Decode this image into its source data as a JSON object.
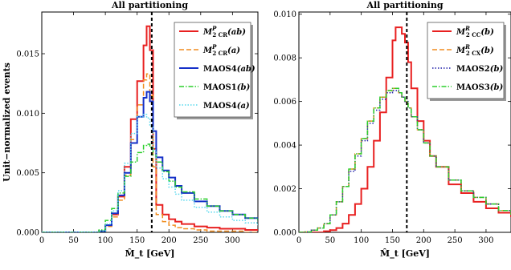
{
  "chart_data": [
    {
      "type": "line",
      "title": "All partitioning",
      "xlabel": "M̂_t [GeV]",
      "ylabel": "Unit−normalized events",
      "xlim": [
        0,
        340
      ],
      "ylim": [
        0,
        0.0185
      ],
      "xticks": [
        "0",
        "50",
        "100",
        "150",
        "200",
        "250",
        "300"
      ],
      "yticks": [
        "0.000",
        "0.005",
        "0.010",
        "0.015"
      ],
      "vline_x": 173,
      "legend_position": "top-right",
      "x": [
        90,
        100,
        110,
        120,
        130,
        140,
        150,
        160,
        165,
        170,
        175,
        180,
        190,
        200,
        210,
        220,
        240,
        260,
        280,
        300,
        320,
        340
      ],
      "series": [
        {
          "name": "M₂CR^P(ab)",
          "label_main": "M",
          "label_sub": "2 CR",
          "label_sup": "P",
          "label_arg": "(ab)",
          "color": "#e82020",
          "dash": "solid",
          "width": 2,
          "values": [
            0.0001,
            0.0006,
            0.0015,
            0.003,
            0.0055,
            0.0095,
            0.0127,
            0.0157,
            0.0173,
            0.0153,
            0.007,
            0.0023,
            0.0015,
            0.0011,
            0.0009,
            0.0007,
            0.0005,
            0.0004,
            0.0003,
            0.0003,
            0.0002,
            0.0002
          ]
        },
        {
          "name": "M₂CR^P(a)",
          "label_main": "M",
          "label_sub": "2 CR",
          "label_sup": "P",
          "label_arg": "(a)",
          "color": "#f08c1e",
          "dash": "6,3",
          "width": 1.5,
          "values": [
            0.0001,
            0.0005,
            0.0013,
            0.0027,
            0.0048,
            0.0078,
            0.0107,
            0.0128,
            0.0133,
            0.0115,
            0.0055,
            0.0015,
            0.0009,
            0.0006,
            0.0004,
            0.0003,
            0.0002,
            0.0001,
            0.0001,
            0.0001,
            0.0,
            0.0
          ]
        },
        {
          "name": "MAOS4(ab)",
          "label_main": "MAOS4",
          "label_sub": "",
          "label_sup": "",
          "label_arg": "(ab)",
          "color": "#1530c8",
          "dash": "solid",
          "width": 2,
          "values": [
            0.0001,
            0.0006,
            0.0016,
            0.0031,
            0.005,
            0.0075,
            0.0097,
            0.0113,
            0.0118,
            0.011,
            0.0085,
            0.0063,
            0.0052,
            0.0046,
            0.0039,
            0.0033,
            0.0026,
            0.0022,
            0.0018,
            0.0015,
            0.0012,
            0.001
          ]
        },
        {
          "name": "MAOS1(b)",
          "label_main": "MAOS1",
          "label_sub": "",
          "label_sup": "",
          "label_arg": "(b)",
          "color": "#2ccf2c",
          "dash": "6,2,1.5,2",
          "width": 1.5,
          "values": [
            0.0002,
            0.001,
            0.002,
            0.0033,
            0.0047,
            0.0059,
            0.0067,
            0.0073,
            0.0074,
            0.0071,
            0.0065,
            0.0059,
            0.0051,
            0.0043,
            0.0038,
            0.0034,
            0.0028,
            0.0022,
            0.0018,
            0.0015,
            0.0012,
            0.001
          ]
        },
        {
          "name": "MAOS4(a)",
          "label_main": "MAOS4",
          "label_sub": "",
          "label_sup": "",
          "label_arg": "(a)",
          "color": "#55d8ee",
          "dash": "1.5,2",
          "width": 1.5,
          "values": [
            0.0001,
            0.0007,
            0.0018,
            0.0035,
            0.0058,
            0.0083,
            0.0097,
            0.0099,
            0.0096,
            0.0089,
            0.0069,
            0.0054,
            0.0045,
            0.0038,
            0.0032,
            0.0027,
            0.0021,
            0.0017,
            0.0013,
            0.001,
            0.0008,
            0.0006
          ]
        }
      ]
    },
    {
      "type": "line",
      "title": "All partitioning",
      "xlabel": "M̂_t [GeV]",
      "ylabel": "",
      "xlim": [
        0,
        340
      ],
      "ylim": [
        0,
        0.0101
      ],
      "xticks": [
        "0",
        "50",
        "100",
        "150",
        "200",
        "250",
        "300"
      ],
      "yticks": [
        "0.000",
        "0.002",
        "0.004",
        "0.006",
        "0.008",
        "0.010"
      ],
      "vline_x": 173,
      "legend_position": "top-right",
      "x": [
        0,
        10,
        20,
        30,
        40,
        50,
        60,
        70,
        80,
        90,
        100,
        110,
        120,
        130,
        140,
        150,
        155,
        160,
        165,
        170,
        175,
        180,
        190,
        200,
        210,
        220,
        240,
        260,
        280,
        300,
        320,
        340
      ],
      "series": [
        {
          "name": "M₂CC^R(b)",
          "label_main": "M",
          "label_sub": "2 CC",
          "label_sup": "R",
          "label_arg": "(b)",
          "color": "#e82020",
          "dash": "solid",
          "width": 2,
          "values": [
            0.0,
            0.0,
            0.0,
            0.0,
            5e-05,
            0.0001,
            0.0002,
            0.0004,
            0.0008,
            0.0013,
            0.002,
            0.003,
            0.0042,
            0.0055,
            0.0071,
            0.0088,
            0.0094,
            0.0094,
            0.0091,
            0.0087,
            0.0078,
            0.0066,
            0.0051,
            0.0042,
            0.0035,
            0.003,
            0.0022,
            0.0018,
            0.0014,
            0.0011,
            0.0009,
            0.0007
          ]
        },
        {
          "name": "M₂CX^R(b)",
          "label_main": "M",
          "label_sub": "2 CX",
          "label_sup": "R",
          "label_arg": "(b)",
          "color": "#f08c1e",
          "dash": "6,3",
          "width": 1.5,
          "values": [
            0.0,
            2e-05,
            0.0001,
            0.0002,
            0.0004,
            0.0008,
            0.0014,
            0.0021,
            0.0029,
            0.0036,
            0.0043,
            0.0051,
            0.0057,
            0.0062,
            0.0065,
            0.0066,
            0.0066,
            0.0064,
            0.0062,
            0.006,
            0.0057,
            0.0053,
            0.0047,
            0.0041,
            0.0035,
            0.003,
            0.0024,
            0.0019,
            0.0016,
            0.0013,
            0.001,
            0.0008
          ]
        },
        {
          "name": "MAOS2(b)",
          "label_main": "MAOS2",
          "label_sub": "",
          "label_sup": "",
          "label_arg": "(b)",
          "color": "#2020aa",
          "dash": "1.5,2",
          "width": 1.5,
          "values": [
            0.0,
            2e-05,
            0.0001,
            0.0002,
            0.0004,
            0.0008,
            0.0014,
            0.0021,
            0.0028,
            0.0035,
            0.0042,
            0.005,
            0.0056,
            0.0061,
            0.0064,
            0.0065,
            0.0065,
            0.0064,
            0.0062,
            0.006,
            0.0057,
            0.0053,
            0.0047,
            0.0041,
            0.0035,
            0.003,
            0.0024,
            0.0019,
            0.0016,
            0.0013,
            0.001,
            0.0008
          ]
        },
        {
          "name": "MAOS3(b)",
          "label_main": "MAOS3",
          "label_sub": "",
          "label_sup": "",
          "label_arg": "(b)",
          "color": "#2ccf2c",
          "dash": "6,2,1.5,2",
          "width": 1.5,
          "values": [
            0.0,
            2e-05,
            0.0001,
            0.0002,
            0.0004,
            0.0008,
            0.0014,
            0.0021,
            0.0029,
            0.0036,
            0.0043,
            0.0051,
            0.0057,
            0.0062,
            0.0065,
            0.0066,
            0.0066,
            0.0064,
            0.0062,
            0.006,
            0.0057,
            0.0053,
            0.0047,
            0.0041,
            0.0035,
            0.003,
            0.0024,
            0.0019,
            0.0016,
            0.0013,
            0.001,
            0.0008
          ]
        }
      ]
    }
  ]
}
